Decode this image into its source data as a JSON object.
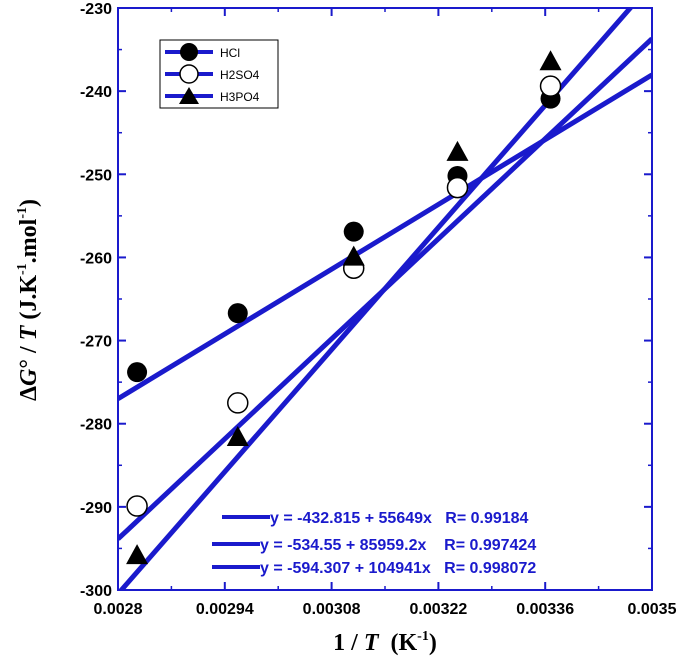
{
  "chart_data": {
    "type": "scatter",
    "xlabel": {
      "prefix": "1 / ",
      "var": "T",
      "unit_open": "  (K",
      "unit_sup": "-1",
      "unit_close": ")"
    },
    "ylabel": {
      "delta": "Δ",
      "g": "G",
      "deg": "°",
      "slash": " / ",
      "t": "T",
      "unit_a": " (J.K",
      "unit_sup1": "-1",
      "unit_b": ".mol",
      "unit_sup2": "-1",
      "unit_c": ")"
    },
    "xlim": [
      0.0028,
      0.0035
    ],
    "ylim": [
      -300,
      -230
    ],
    "x_ticks": [
      0.0028,
      0.00294,
      0.00308,
      0.00322,
      0.00336,
      0.0035
    ],
    "x_tick_labels": [
      "0.0028",
      "0.00294",
      "0.00308",
      "0.00322",
      "0.00336",
      "0.0035"
    ],
    "y_ticks": [
      -300,
      -290,
      -280,
      -270,
      -260,
      -250,
      -240,
      -230
    ],
    "y_tick_labels": [
      "-300",
      "-290",
      "-280",
      "-270",
      "-260",
      "-250",
      "-240",
      "-230"
    ],
    "grid": false,
    "legend_position": "top-left",
    "line_color": "#1a1acc",
    "series": [
      {
        "name": "HCl",
        "marker": "filled-circle",
        "x": [
          0.002825,
          0.002957,
          0.003109,
          0.003245,
          0.003367
        ],
        "y": [
          -273.8,
          -266.7,
          -256.9,
          -250.2,
          -240.9
        ],
        "fit": {
          "intercept": -432.815,
          "slope": 55649
        },
        "equation": "y = -432.815 + 55649x   R= 0.99184"
      },
      {
        "name": "H2SO4",
        "marker": "open-circle",
        "x": [
          0.002825,
          0.002957,
          0.003109,
          0.003245,
          0.003367
        ],
        "y": [
          -289.9,
          -277.5,
          -261.3,
          -251.6,
          -239.4
        ],
        "fit": {
          "intercept": -534.55,
          "slope": 85959.2
        },
        "equation": "y = -534.55 + 85959.2x    R= 0.997424"
      },
      {
        "name": "H3PO4",
        "marker": "filled-triangle",
        "x": [
          0.002825,
          0.002957,
          0.003109,
          0.003245,
          0.003367
        ],
        "y": [
          -295.8,
          -281.6,
          -259.9,
          -247.3,
          -236.4
        ],
        "fit": {
          "intercept": -594.307,
          "slope": 104941
        },
        "equation": "y = -594.307 + 104941x   R= 0.998072"
      }
    ]
  }
}
